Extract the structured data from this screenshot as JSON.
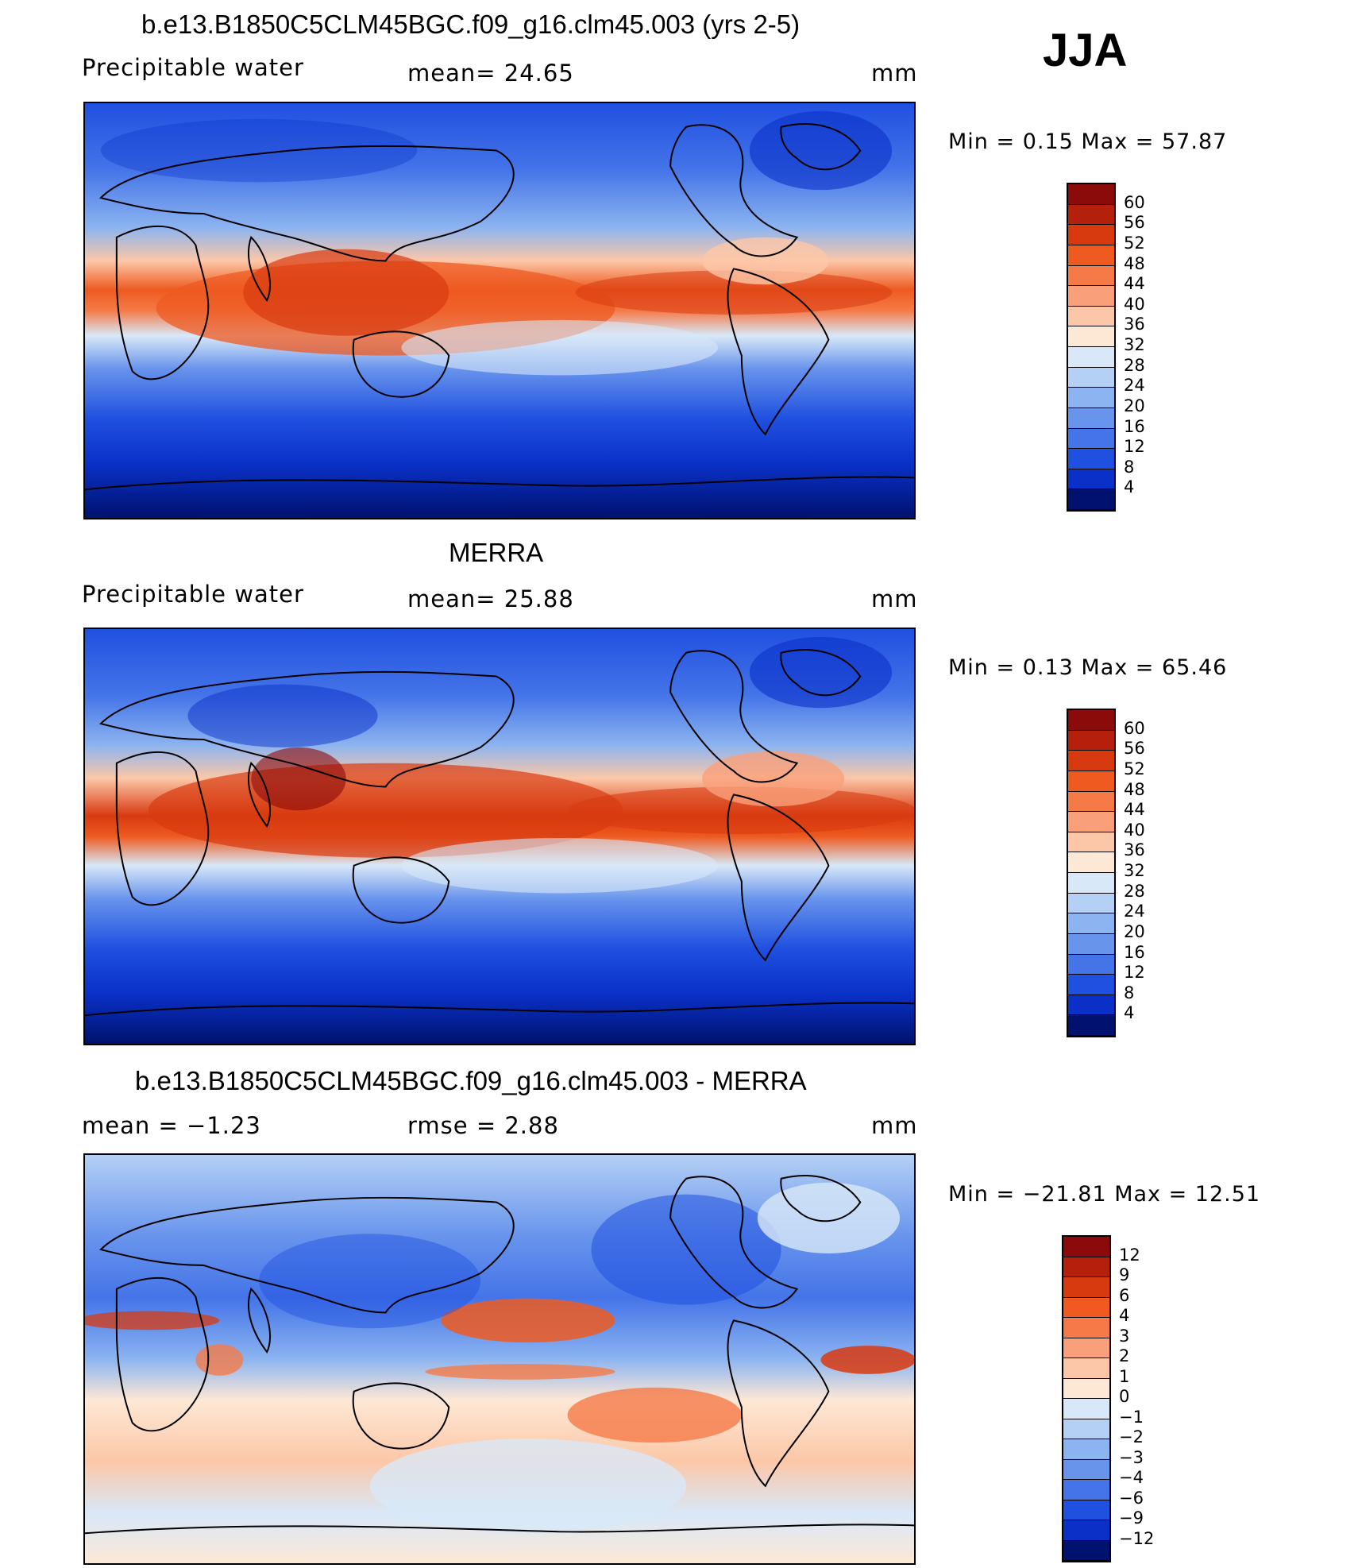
{
  "season": "JJA",
  "panels": [
    {
      "id": "model",
      "title": "b.e13.B1850C5CLM45BGC.f09_g16.clm45.003 (yrs 2-5)",
      "left_label": "Precipitable  water",
      "center_label": "mean=   24.65",
      "units": "mm",
      "minmax": "Min  =     0.15  Max  =    57.87",
      "levels": [
        "60",
        "56",
        "52",
        "48",
        "44",
        "40",
        "36",
        "32",
        "28",
        "24",
        "20",
        "16",
        "12",
        "8",
        "4"
      ],
      "colors": [
        "#8b0a0a",
        "#b5200c",
        "#d83a10",
        "#ee5a20",
        "#f57a48",
        "#f9a07a",
        "#fcc7a8",
        "#fde8d5",
        "#d8e8f8",
        "#b4d0f5",
        "#8cb4f0",
        "#6894ec",
        "#4474e8",
        "#2050e0",
        "#0a30c8",
        "#00126e"
      ]
    },
    {
      "id": "obs",
      "title": "MERRA",
      "left_label": "Precipitable  water",
      "center_label": "mean=   25.88",
      "units": "mm",
      "minmax": "Min  =     0.13  Max  =    65.46",
      "levels": [
        "60",
        "56",
        "52",
        "48",
        "44",
        "40",
        "36",
        "32",
        "28",
        "24",
        "20",
        "16",
        "12",
        "8",
        "4"
      ],
      "colors": [
        "#8b0a0a",
        "#b5200c",
        "#d83a10",
        "#ee5a20",
        "#f57a48",
        "#f9a07a",
        "#fcc7a8",
        "#fde8d5",
        "#d8e8f8",
        "#b4d0f5",
        "#8cb4f0",
        "#6894ec",
        "#4474e8",
        "#2050e0",
        "#0a30c8",
        "#00126e"
      ]
    },
    {
      "id": "diff",
      "title": "b.e13.B1850C5CLM45BGC.f09_g16.clm45.003 - MERRA",
      "left_label": "mean  =    −1.23",
      "center_label": "rmse  =     2.88",
      "units": "mm",
      "minmax": "Min  = −21.81  Max  =    12.51",
      "levels": [
        "12",
        "9",
        "6",
        "4",
        "3",
        "2",
        "1",
        "0",
        "−1",
        "−2",
        "−3",
        "−4",
        "−6",
        "−9",
        "−12"
      ],
      "colors": [
        "#8b0a0a",
        "#b5200c",
        "#d83a10",
        "#ee5a20",
        "#f57a48",
        "#f9a07a",
        "#fcc7a8",
        "#fde8d5",
        "#d8e8f8",
        "#b4d0f5",
        "#8cb4f0",
        "#6894ec",
        "#4474e8",
        "#2050e0",
        "#0a30c8",
        "#00126e"
      ]
    }
  ]
}
